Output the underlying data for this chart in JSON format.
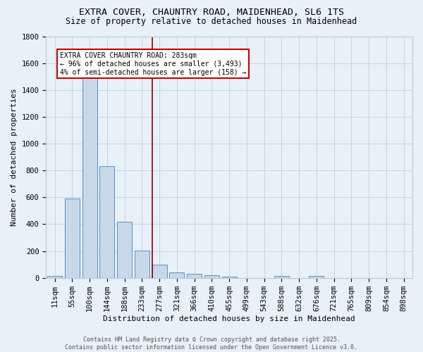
{
  "title1": "EXTRA COVER, CHAUNTRY ROAD, MAIDENHEAD, SL6 1TS",
  "title2": "Size of property relative to detached houses in Maidenhead",
  "xlabel": "Distribution of detached houses by size in Maidenhead",
  "ylabel": "Number of detached properties",
  "bar_categories": [
    "11sqm",
    "55sqm",
    "100sqm",
    "144sqm",
    "188sqm",
    "233sqm",
    "277sqm",
    "321sqm",
    "366sqm",
    "410sqm",
    "455sqm",
    "499sqm",
    "543sqm",
    "588sqm",
    "632sqm",
    "676sqm",
    "721sqm",
    "765sqm",
    "809sqm",
    "854sqm",
    "898sqm"
  ],
  "bar_values": [
    15,
    590,
    1490,
    830,
    420,
    205,
    100,
    38,
    28,
    18,
    8,
    0,
    0,
    14,
    0,
    12,
    0,
    0,
    0,
    0,
    0
  ],
  "bar_color": "#c8d8e8",
  "bar_edge_color": "#5a8fc0",
  "vline_color": "#8b0000",
  "annotation_text": "EXTRA COVER CHAUNTRY ROAD: 283sqm\n← 96% of detached houses are smaller (3,493)\n4% of semi-detached houses are larger (158) →",
  "annotation_box_color": "white",
  "annotation_box_edge": "#cc0000",
  "ylim": [
    0,
    1800
  ],
  "yticks": [
    0,
    200,
    400,
    600,
    800,
    1000,
    1200,
    1400,
    1600,
    1800
  ],
  "background_color": "#e8f0f8",
  "footer_text": "Contains HM Land Registry data © Crown copyright and database right 2025.\nContains public sector information licensed under the Open Government Licence v3.0.",
  "title1_fontsize": 9.5,
  "title2_fontsize": 8.5,
  "axis_label_fontsize": 8,
  "tick_fontsize": 7.5,
  "annotation_fontsize": 7,
  "footer_fontsize": 6
}
